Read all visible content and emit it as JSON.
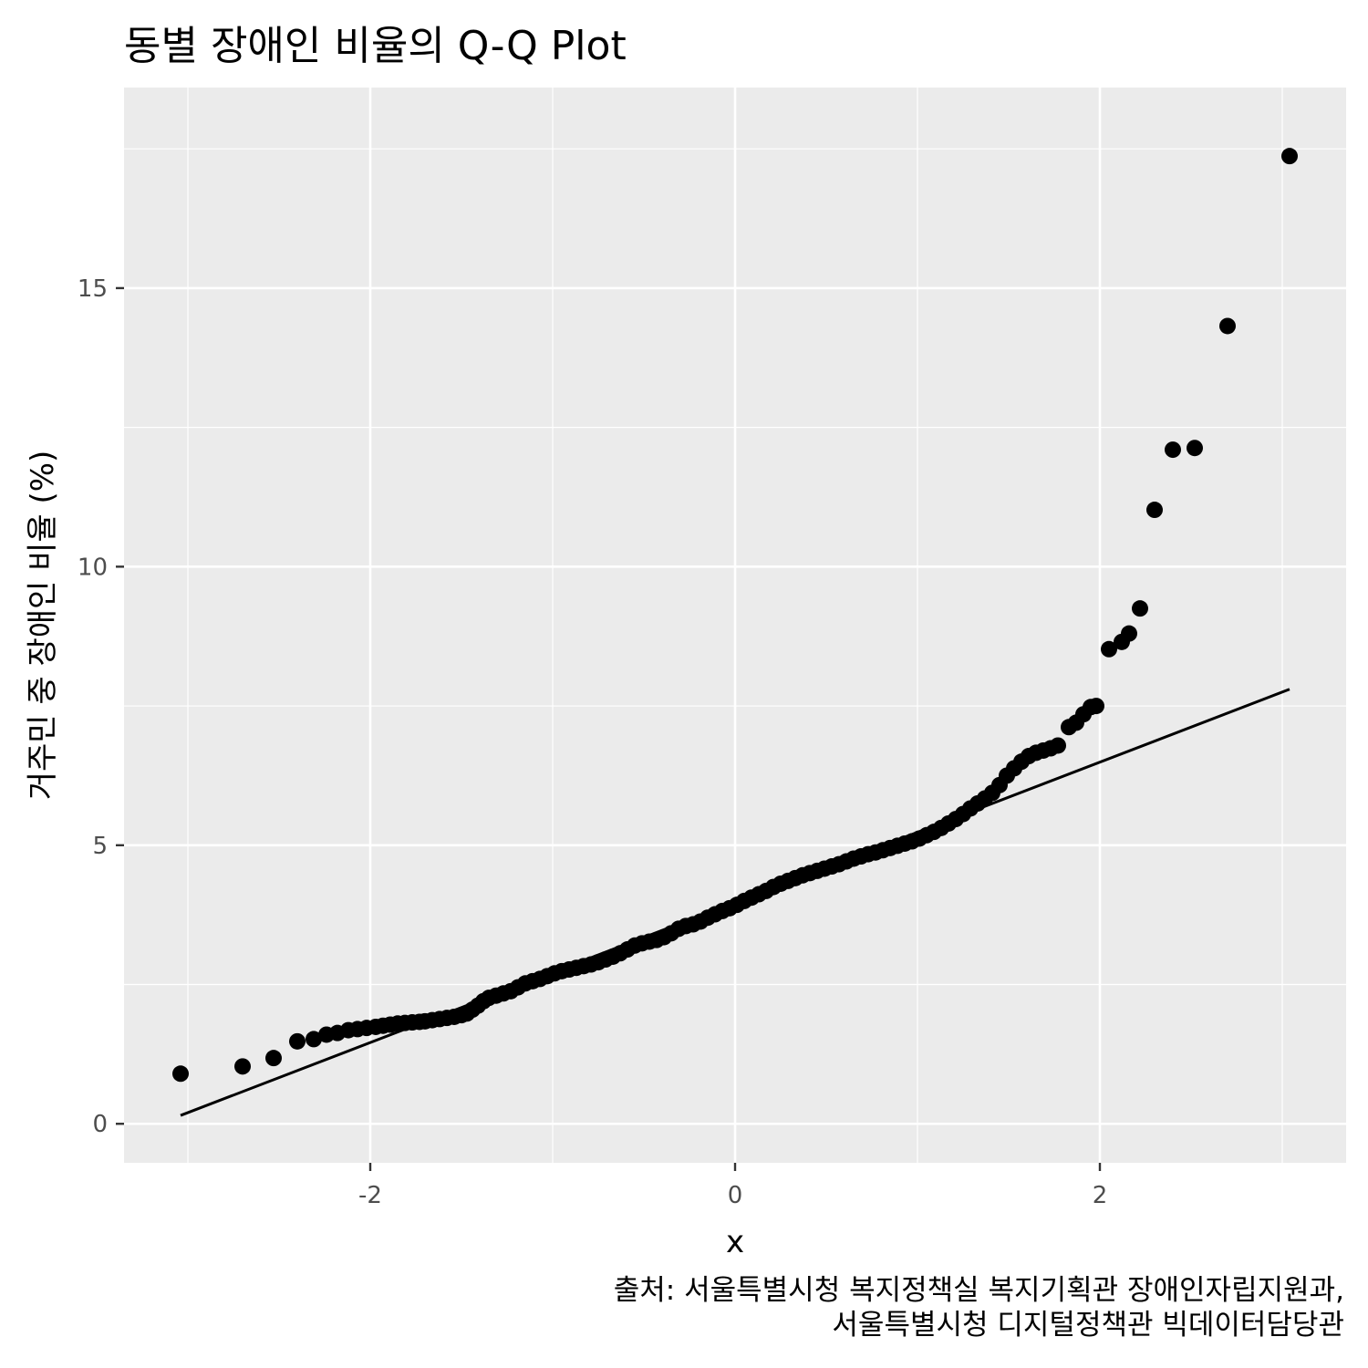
{
  "chart_data": {
    "type": "scatter",
    "title": "동별 장애인 비율의 Q-Q Plot",
    "xlabel": "x",
    "ylabel": "거주민 중 장애인 비율 (%)",
    "caption_lines": [
      "출처: 서울특별시청 복지정책실 복지기획관 장애인자립지원과,",
      "서울특별시청 디지털정책관 빅데이터담당관"
    ],
    "x_ticks": [
      {
        "value": -2,
        "label": "-2"
      },
      {
        "value": 0,
        "label": "0"
      },
      {
        "value": 2,
        "label": "2"
      }
    ],
    "y_ticks": [
      {
        "value": 0,
        "label": "0"
      },
      {
        "value": 5,
        "label": "5"
      },
      {
        "value": 10,
        "label": "10"
      },
      {
        "value": 15,
        "label": "15"
      }
    ],
    "xlim": [
      -3.35,
      3.35
    ],
    "ylim": [
      -0.7,
      18.6
    ],
    "grid": true,
    "background": "#ebebeb",
    "gridline_color": "#ffffff",
    "point_color": "#000000",
    "reference_line": {
      "x": [
        -3.04,
        3.04
      ],
      "y": [
        0.15,
        7.8
      ],
      "color": "#000000"
    },
    "points": [
      [
        -3.04,
        0.9
      ],
      [
        -2.7,
        1.03
      ],
      [
        -2.53,
        1.18
      ],
      [
        -2.4,
        1.48
      ],
      [
        -2.31,
        1.52
      ],
      [
        -2.24,
        1.6
      ],
      [
        -2.18,
        1.63
      ],
      [
        -2.12,
        1.68
      ],
      [
        -2.07,
        1.7
      ],
      [
        -2.02,
        1.72
      ],
      [
        -1.97,
        1.74
      ],
      [
        -1.93,
        1.76
      ],
      [
        -1.89,
        1.78
      ],
      [
        -1.85,
        1.8
      ],
      [
        -1.81,
        1.81
      ],
      [
        -1.77,
        1.82
      ],
      [
        -1.73,
        1.83
      ],
      [
        -1.7,
        1.84
      ],
      [
        -1.66,
        1.86
      ],
      [
        -1.62,
        1.88
      ],
      [
        -1.58,
        1.9
      ],
      [
        -1.54,
        1.92
      ],
      [
        -1.5,
        1.95
      ],
      [
        -1.47,
        1.98
      ],
      [
        -1.44,
        2.05
      ],
      [
        -1.41,
        2.12
      ],
      [
        -1.38,
        2.2
      ],
      [
        -1.35,
        2.26
      ],
      [
        -1.31,
        2.3
      ],
      [
        -1.27,
        2.34
      ],
      [
        -1.23,
        2.38
      ],
      [
        -1.19,
        2.45
      ],
      [
        -1.15,
        2.52
      ],
      [
        -1.11,
        2.56
      ],
      [
        -1.07,
        2.6
      ],
      [
        -1.03,
        2.65
      ],
      [
        -0.99,
        2.7
      ],
      [
        -0.95,
        2.74
      ],
      [
        -0.91,
        2.77
      ],
      [
        -0.87,
        2.8
      ],
      [
        -0.83,
        2.83
      ],
      [
        -0.79,
        2.86
      ],
      [
        -0.75,
        2.9
      ],
      [
        -0.71,
        2.95
      ],
      [
        -0.67,
        3.0
      ],
      [
        -0.63,
        3.06
      ],
      [
        -0.59,
        3.13
      ],
      [
        -0.55,
        3.2
      ],
      [
        -0.51,
        3.24
      ],
      [
        -0.47,
        3.27
      ],
      [
        -0.43,
        3.3
      ],
      [
        -0.39,
        3.35
      ],
      [
        -0.35,
        3.42
      ],
      [
        -0.31,
        3.5
      ],
      [
        -0.27,
        3.55
      ],
      [
        -0.23,
        3.58
      ],
      [
        -0.19,
        3.63
      ],
      [
        -0.15,
        3.7
      ],
      [
        -0.11,
        3.76
      ],
      [
        -0.07,
        3.82
      ],
      [
        -0.03,
        3.87
      ],
      [
        0.01,
        3.93
      ],
      [
        0.05,
        4.0
      ],
      [
        0.09,
        4.06
      ],
      [
        0.13,
        4.12
      ],
      [
        0.17,
        4.18
      ],
      [
        0.21,
        4.25
      ],
      [
        0.25,
        4.31
      ],
      [
        0.29,
        4.36
      ],
      [
        0.33,
        4.41
      ],
      [
        0.37,
        4.46
      ],
      [
        0.41,
        4.5
      ],
      [
        0.45,
        4.54
      ],
      [
        0.49,
        4.58
      ],
      [
        0.53,
        4.62
      ],
      [
        0.57,
        4.66
      ],
      [
        0.61,
        4.71
      ],
      [
        0.65,
        4.76
      ],
      [
        0.69,
        4.8
      ],
      [
        0.73,
        4.84
      ],
      [
        0.77,
        4.87
      ],
      [
        0.81,
        4.91
      ],
      [
        0.85,
        4.95
      ],
      [
        0.89,
        4.99
      ],
      [
        0.93,
        5.03
      ],
      [
        0.97,
        5.07
      ],
      [
        1.01,
        5.12
      ],
      [
        1.05,
        5.18
      ],
      [
        1.09,
        5.24
      ],
      [
        1.13,
        5.31
      ],
      [
        1.17,
        5.39
      ],
      [
        1.21,
        5.47
      ],
      [
        1.25,
        5.56
      ],
      [
        1.29,
        5.66
      ],
      [
        1.33,
        5.75
      ],
      [
        1.37,
        5.84
      ],
      [
        1.41,
        5.94
      ],
      [
        1.45,
        6.08
      ],
      [
        1.49,
        6.25
      ],
      [
        1.53,
        6.38
      ],
      [
        1.57,
        6.5
      ],
      [
        1.61,
        6.6
      ],
      [
        1.65,
        6.66
      ],
      [
        1.69,
        6.7
      ],
      [
        1.73,
        6.74
      ],
      [
        1.77,
        6.79
      ],
      [
        1.83,
        7.12
      ],
      [
        1.87,
        7.2
      ],
      [
        1.91,
        7.35
      ],
      [
        1.95,
        7.48
      ],
      [
        1.98,
        7.5
      ],
      [
        2.05,
        8.52
      ],
      [
        2.12,
        8.65
      ],
      [
        2.16,
        8.8
      ],
      [
        2.22,
        9.25
      ],
      [
        2.3,
        11.02
      ],
      [
        2.4,
        12.1
      ],
      [
        2.52,
        12.13
      ],
      [
        2.7,
        14.32
      ],
      [
        3.04,
        17.37
      ]
    ]
  }
}
